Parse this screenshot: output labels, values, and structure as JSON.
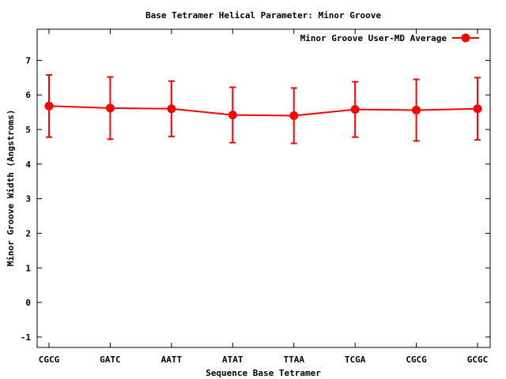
{
  "chart_data": {
    "type": "line",
    "title": "Base Tetramer Helical Parameter: Minor Groove",
    "xlabel": "Sequence Base Tetramer",
    "ylabel": "Minor Groove Width (Angstroms)",
    "categories": [
      "CGCG",
      "GATC",
      "AATT",
      "ATAT",
      "TTAA",
      "TCGA",
      "CGCG",
      "GCGC"
    ],
    "ylim": [
      -1.3,
      7.9
    ],
    "yticks": [
      -1,
      0,
      1,
      2,
      3,
      4,
      5,
      6,
      7
    ],
    "grid": false,
    "legend_position": "top-right",
    "series": [
      {
        "name": "Minor Groove User-MD Average",
        "color": "#ff0000",
        "marker": "circle",
        "values": [
          5.68,
          5.62,
          5.6,
          5.42,
          5.4,
          5.58,
          5.56,
          5.6
        ],
        "err_low": [
          4.78,
          4.72,
          4.8,
          4.62,
          4.6,
          4.78,
          4.67,
          4.7
        ],
        "err_high": [
          6.58,
          6.52,
          6.4,
          6.22,
          6.2,
          6.38,
          6.45,
          6.5
        ]
      }
    ]
  }
}
